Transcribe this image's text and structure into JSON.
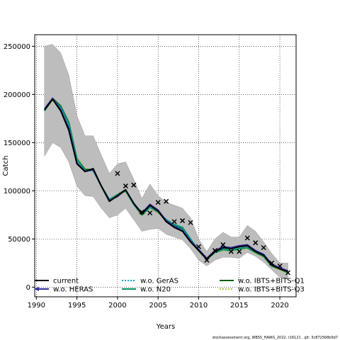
{
  "chart_data": {
    "type": "line",
    "xlabel": "Years",
    "ylabel": "Catch",
    "xlim": [
      1989.8,
      2022
    ],
    "ylim": [
      -10000,
      262000
    ],
    "grid": true,
    "xticks": [
      1990,
      1995,
      2000,
      2005,
      2010,
      2015,
      2020
    ],
    "yticks": [
      0,
      50000,
      100000,
      150000,
      200000,
      250000
    ],
    "uncertainty_band": {
      "x": [
        1991,
        1992,
        1993,
        1994,
        1995,
        1996,
        1997,
        1998,
        1999,
        2000,
        2001,
        2002,
        2003,
        2004,
        2005,
        2006,
        2007,
        2008,
        2009,
        2010,
        2011,
        2012,
        2013,
        2014,
        2015,
        2016,
        2017,
        2018,
        2019,
        2020,
        2021
      ],
      "upper": [
        250000,
        252000,
        243000,
        220000,
        178000,
        157000,
        157000,
        137000,
        118000,
        128000,
        130000,
        112000,
        92000,
        107000,
        95000,
        88000,
        85000,
        82000,
        72000,
        50000,
        37000,
        50000,
        57000,
        52000,
        52000,
        64000,
        58000,
        47000,
        35000,
        25000,
        25000
      ],
      "lower": [
        136000,
        150000,
        145000,
        130000,
        105000,
        95000,
        94000,
        82000,
        72000,
        75000,
        82000,
        70000,
        58000,
        60000,
        61000,
        55000,
        52000,
        49000,
        40000,
        28000,
        22000,
        28000,
        31000,
        31000,
        30000,
        36000,
        32000,
        26000,
        18000,
        10000,
        8000
      ]
    },
    "observed": {
      "x": [
        2000,
        2001,
        2002,
        2003,
        2004,
        2005,
        2006,
        2007,
        2008,
        2009,
        2010,
        2011,
        2012,
        2013,
        2014,
        2015,
        2016,
        2017,
        2018,
        2019,
        2020,
        2021
      ],
      "values": [
        118000,
        105000,
        106000,
        78000,
        77000,
        88000,
        89000,
        68000,
        69000,
        67000,
        42000,
        28000,
        38000,
        44000,
        37000,
        37000,
        51000,
        46000,
        41000,
        25000,
        22000,
        15000
      ]
    },
    "x": [
      1991,
      1992,
      1993,
      1994,
      1995,
      1996,
      1997,
      1998,
      1999,
      2000,
      2001,
      2002,
      2003,
      2004,
      2005,
      2006,
      2007,
      2008,
      2009,
      2010,
      2011,
      2012,
      2013,
      2014,
      2015,
      2016,
      2017,
      2018,
      2019,
      2020,
      2021
    ],
    "series": [
      {
        "name": "current",
        "color": "#000000",
        "dash": "solid",
        "values": [
          184000,
          195000,
          183000,
          163000,
          128000,
          120000,
          123000,
          105000,
          89000,
          95000,
          101000,
          87000,
          76000,
          85000,
          79000,
          68000,
          62000,
          58000,
          47000,
          38000,
          29000,
          37000,
          41000,
          40000,
          42000,
          43000,
          37000,
          33000,
          23000,
          19000,
          16000
        ]
      },
      {
        "name": "w.o. HERAS",
        "color": "#3030a0",
        "dash": "solid",
        "values": [
          185000,
          196000,
          184000,
          165000,
          129000,
          120000,
          122000,
          105000,
          90000,
          94000,
          101000,
          87000,
          77000,
          86000,
          80000,
          69000,
          63000,
          59000,
          48000,
          39000,
          30000,
          38000,
          42000,
          41000,
          43000,
          44000,
          38000,
          34000,
          24000,
          20000,
          17000
        ]
      },
      {
        "name": "w.o. GerAS",
        "color": "#00a0c0",
        "dash": "dotted",
        "values": [
          184000,
          195000,
          186000,
          168000,
          131000,
          121000,
          121000,
          105000,
          91000,
          95000,
          100000,
          86000,
          76000,
          83000,
          79000,
          70000,
          64000,
          61000,
          49000,
          39000,
          30000,
          38000,
          40000,
          39000,
          41000,
          42000,
          37000,
          33000,
          23000,
          20000,
          16000
        ]
      },
      {
        "name": "w.o. N20",
        "color": "#009060",
        "dash": "solid",
        "values": [
          183000,
          195000,
          187000,
          170000,
          133000,
          121000,
          121000,
          105000,
          91000,
          96000,
          100000,
          86000,
          75000,
          83000,
          78000,
          70000,
          65000,
          62000,
          50000,
          38000,
          29000,
          36000,
          39000,
          38000,
          40000,
          41000,
          36000,
          32000,
          22000,
          19000,
          15000
        ]
      },
      {
        "name": "w.o. IBTS+BITS-Q1",
        "color": "#006000",
        "dash": "solid",
        "values": [
          184000,
          196000,
          188000,
          171000,
          133000,
          122000,
          122000,
          105000,
          91000,
          96000,
          101000,
          86000,
          75000,
          83000,
          78000,
          70000,
          64000,
          61000,
          49000,
          38000,
          29000,
          36000,
          39000,
          38000,
          40000,
          41000,
          36000,
          32000,
          22000,
          19000,
          15000
        ]
      },
      {
        "name": "w.o. IBTS+BITS-Q3",
        "color": "#a0c040",
        "dash": "dotted",
        "values": [
          183000,
          194000,
          187000,
          170000,
          135000,
          123000,
          121000,
          104000,
          90000,
          95000,
          99000,
          86000,
          74000,
          82000,
          77000,
          70000,
          65000,
          62000,
          49000,
          37000,
          28000,
          36000,
          38000,
          37000,
          39000,
          40000,
          35000,
          31000,
          21000,
          18000,
          14000
        ]
      }
    ]
  },
  "legend": [
    {
      "label": "current",
      "color": "#000000",
      "dash": "solid",
      "symbol": "line"
    },
    {
      "label": "w.o. GerAS",
      "color": "#00a0c0",
      "dash": "dotted",
      "symbol": "line"
    },
    {
      "label": "w.o. IBTS+BITS-Q1",
      "color": "#006000",
      "dash": "solid",
      "symbol": "line"
    },
    {
      "label": "w.o. HERAS",
      "color": "#3030a0",
      "dash": "solid",
      "symbol": "arrow"
    },
    {
      "label": "w.o. N20",
      "color": "#009060",
      "dash": "solid",
      "symbol": "line"
    },
    {
      "label": "w.o. IBTS+BITS-Q3",
      "color": "#a0c040",
      "dash": "dotted",
      "symbol": "line"
    }
  ],
  "footer": "stockassessment.org, WBSS_HAWG_2022, r16121 , git: 3c872568b9d7"
}
